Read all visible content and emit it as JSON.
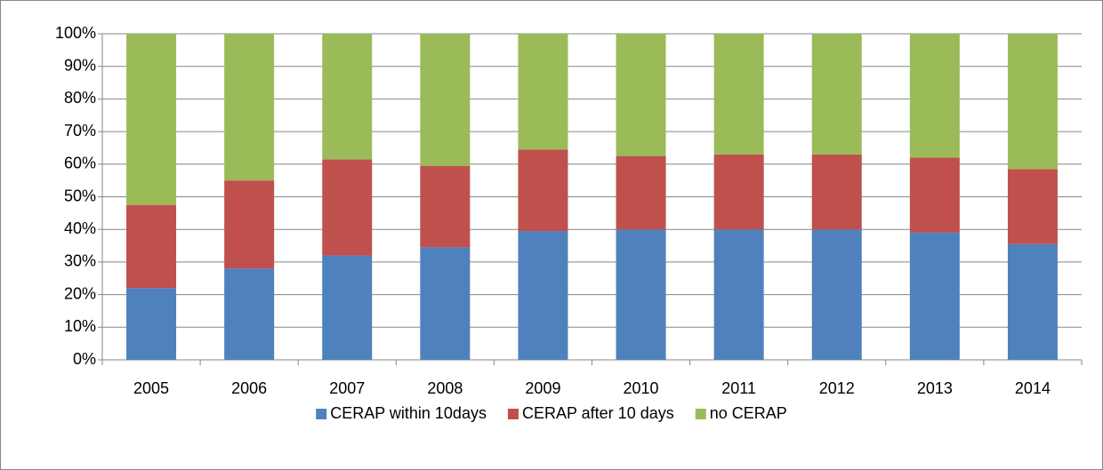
{
  "chart_data": {
    "type": "stacked_bar",
    "categories": [
      "2005",
      "2006",
      "2007",
      "2008",
      "2009",
      "2010",
      "2011",
      "2012",
      "2013",
      "2014"
    ],
    "series": [
      {
        "name": "CERAP within 10days",
        "color": "#4f81bd",
        "values": [
          22,
          28,
          32,
          34.5,
          39.5,
          40,
          40,
          40,
          39,
          35.5
        ]
      },
      {
        "name": "CERAP after 10 days",
        "color": "#c0504d",
        "values": [
          25.5,
          27,
          29.5,
          25,
          25,
          22.5,
          23,
          23,
          23,
          23
        ]
      },
      {
        "name": "no CERAP",
        "color": "#9bbb59",
        "values": [
          52.5,
          45,
          38.5,
          40.5,
          35.5,
          37.5,
          37,
          37,
          38,
          41.5
        ]
      }
    ],
    "ylim": [
      0,
      100
    ],
    "yticks": [
      {
        "value": 0,
        "label": "0%"
      },
      {
        "value": 10,
        "label": "10%"
      },
      {
        "value": 20,
        "label": "20%"
      },
      {
        "value": 30,
        "label": "30%"
      },
      {
        "value": 40,
        "label": "40%"
      },
      {
        "value": 50,
        "label": "50%"
      },
      {
        "value": 60,
        "label": "60%"
      },
      {
        "value": 70,
        "label": "70%"
      },
      {
        "value": 80,
        "label": "80%"
      },
      {
        "value": 90,
        "label": "90%"
      },
      {
        "value": 100,
        "label": "100%"
      }
    ],
    "grid": true,
    "legend": "bottom"
  }
}
